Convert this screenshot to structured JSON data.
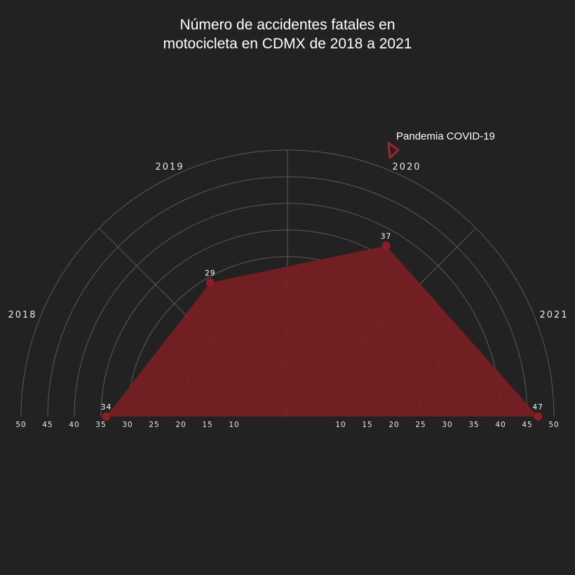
{
  "chart_data": {
    "type": "radar",
    "title_lines": [
      "Número de accidentes fatales en",
      "motocicleta en CDMX de 2018 a 2021"
    ],
    "categories": [
      "2018",
      "2019",
      "2020",
      "2021"
    ],
    "values": [
      34,
      29,
      37,
      47
    ],
    "value_labels": [
      "34",
      "29",
      "37",
      "47"
    ],
    "rlim": [
      0,
      50
    ],
    "radial_ticks": [
      10,
      15,
      20,
      25,
      30,
      35,
      40,
      45,
      50
    ],
    "radial_tick_labels": [
      "10",
      "15",
      "20",
      "25",
      "30",
      "35",
      "40",
      "45",
      "50"
    ],
    "layout": "half-polar (upper semicircle)",
    "grid": true,
    "annotation": {
      "text": "Pandemia COVID-19",
      "marker": "triangle",
      "near": "2020"
    },
    "colors": {
      "background": "#222222",
      "fill": "#7a1f22",
      "marker": "#8c1d22",
      "annotation_marker": "#a0262a",
      "grid": "#5a5a5a",
      "text": "#ffffff"
    }
  }
}
